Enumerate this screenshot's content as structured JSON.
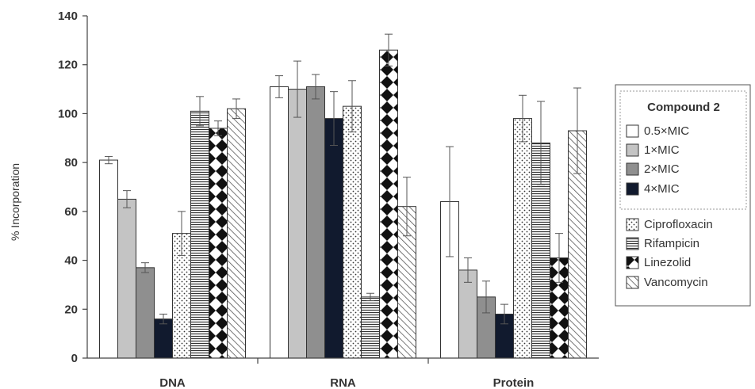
{
  "chart_data": {
    "type": "bar",
    "ylabel": "% Incorporation",
    "ylim": [
      0,
      140
    ],
    "yticks": [
      0,
      20,
      40,
      60,
      80,
      100,
      120,
      140
    ],
    "categories": [
      "DNA",
      "RNA",
      "Protein"
    ],
    "legend_group_title": "Compound 2",
    "legend_position": "right",
    "series": [
      {
        "name": "0.5×MIC",
        "values": [
          81,
          111,
          64
        ],
        "errors": [
          1.5,
          4.5,
          22.5
        ],
        "fill": "#ffffff",
        "pattern": "solid"
      },
      {
        "name": "1×MIC",
        "values": [
          65,
          110,
          36
        ],
        "errors": [
          3.5,
          11.5,
          5
        ],
        "fill": "#c4c4c4",
        "pattern": "solid"
      },
      {
        "name": "2×MIC",
        "values": [
          37,
          111,
          25
        ],
        "errors": [
          2,
          5,
          6.5
        ],
        "fill": "#8f8f8f",
        "pattern": "solid"
      },
      {
        "name": "4×MIC",
        "values": [
          16,
          98,
          18
        ],
        "errors": [
          2,
          11,
          4
        ],
        "fill": "#111a2e",
        "pattern": "solid"
      },
      {
        "name": "Ciprofloxacin",
        "values": [
          51,
          103,
          98
        ],
        "errors": [
          9,
          10.5,
          9.5
        ],
        "fill": "#ffffff",
        "pattern": "dots"
      },
      {
        "name": "Rifampicin",
        "values": [
          101,
          25,
          88
        ],
        "errors": [
          6,
          1.5,
          17
        ],
        "fill": "#ffffff",
        "pattern": "hlines"
      },
      {
        "name": "Linezolid",
        "values": [
          94,
          126,
          41
        ],
        "errors": [
          3,
          6.5,
          10
        ],
        "fill": "#ffffff",
        "pattern": "diamonds"
      },
      {
        "name": "Vancomycin",
        "values": [
          102,
          62,
          93
        ],
        "errors": [
          4,
          12,
          17.5
        ],
        "fill": "#ffffff",
        "pattern": "diag"
      }
    ]
  }
}
